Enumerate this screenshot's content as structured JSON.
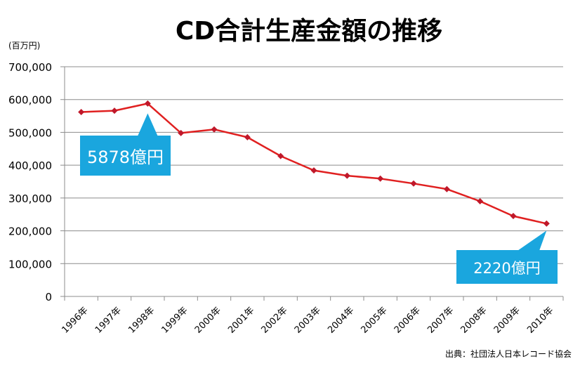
{
  "chart_data": {
    "type": "line",
    "title": "CD合計生産金額の推移",
    "unit_label": "(百万円)",
    "xlabel": "",
    "ylabel": "",
    "categories": [
      "1996年",
      "1997年",
      "1998年",
      "1999年",
      "2000年",
      "2001年",
      "2002年",
      "2003年",
      "2004年",
      "2005年",
      "2006年",
      "2007年",
      "2008年",
      "2009年",
      "2010年"
    ],
    "series": [
      {
        "values": [
          562000,
          566000,
          587800,
          498000,
          509000,
          485000,
          428000,
          384000,
          368000,
          359000,
          344000,
          327000,
          290000,
          245000,
          222000
        ]
      }
    ],
    "y_ticks": [
      "0",
      "100,000",
      "200,000",
      "300,000",
      "400,000",
      "500,000",
      "600,000",
      "700,000"
    ],
    "ylim": [
      0,
      700000
    ],
    "grid": true,
    "annotations": [
      {
        "text": "5878億円",
        "points_to": "1998年"
      },
      {
        "text": "2220億円",
        "points_to": "2010年"
      }
    ],
    "source": "出典：社団法人日本レコード協会",
    "colors": {
      "line": "#e02020",
      "marker": "#c0182a",
      "callout": "#1aa6de",
      "grid": "#8c8c8c"
    }
  }
}
